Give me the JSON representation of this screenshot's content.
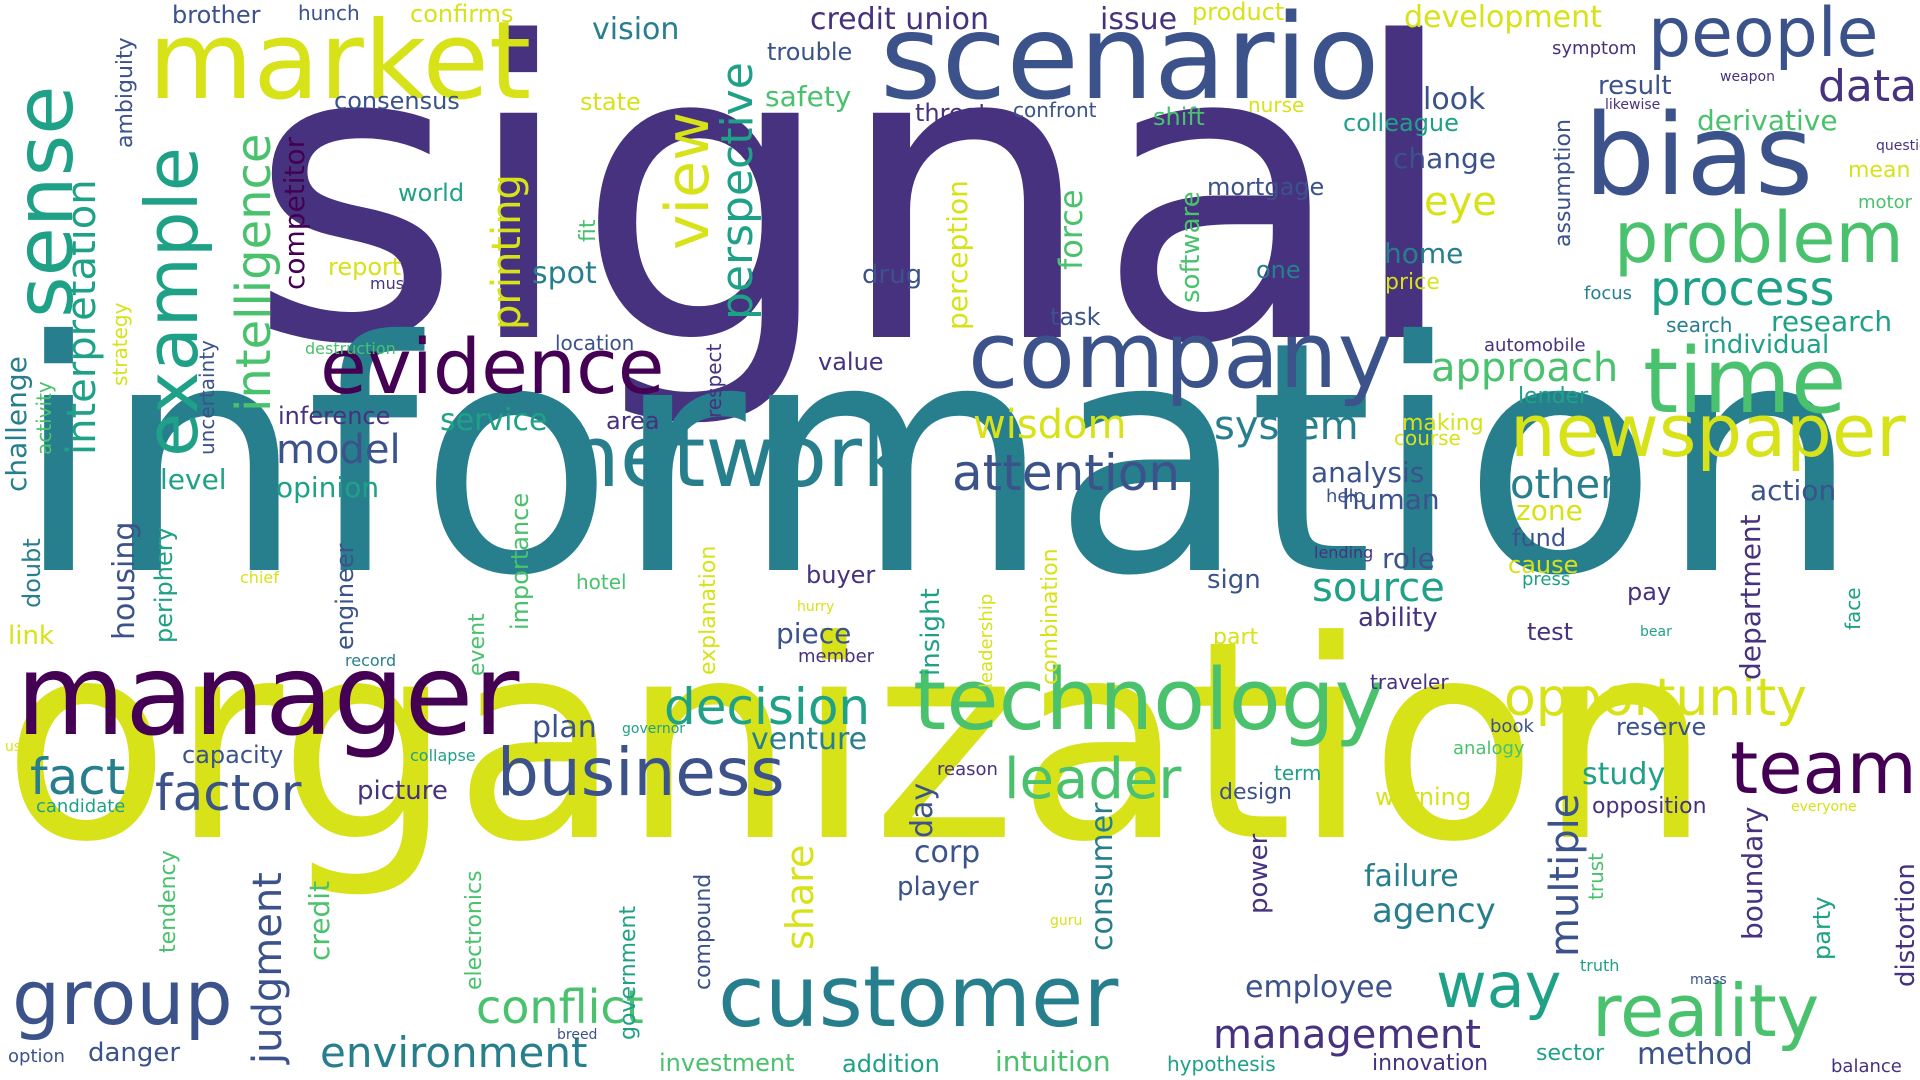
{
  "palette": {
    "background": "#ffffff",
    "p": "#46327e",
    "d": "#3b528b",
    "t": "#277f8e",
    "g": "#1fa187",
    "l": "#4ac16d",
    "y": "#a0da39",
    "b": "#d8e219",
    "n": "#440154"
  },
  "words": [
    {
      "text": "signal",
      "color": "p",
      "vertical": false
    },
    {
      "text": "information",
      "color": "t",
      "vertical": false
    },
    {
      "text": "organization",
      "color": "b",
      "vertical": false
    },
    {
      "text": "scenario",
      "color": "d",
      "vertical": false
    },
    {
      "text": "market",
      "color": "b",
      "vertical": false
    },
    {
      "text": "manager",
      "color": "n",
      "vertical": false
    },
    {
      "text": "company",
      "color": "d",
      "vertical": false
    },
    {
      "text": "bias",
      "color": "d",
      "vertical": false
    },
    {
      "text": "network",
      "color": "t",
      "vertical": false
    },
    {
      "text": "technology",
      "color": "l",
      "vertical": false
    },
    {
      "text": "customer",
      "color": "t",
      "vertical": false
    },
    {
      "text": "evidence",
      "color": "n",
      "vertical": false
    },
    {
      "text": "people",
      "color": "d",
      "vertical": false
    },
    {
      "text": "time",
      "color": "l",
      "vertical": false
    },
    {
      "text": "newspaper",
      "color": "b",
      "vertical": false
    },
    {
      "text": "problem",
      "color": "l",
      "vertical": false
    },
    {
      "text": "business",
      "color": "d",
      "vertical": false
    },
    {
      "text": "team",
      "color": "n",
      "vertical": false
    },
    {
      "text": "reality",
      "color": "l",
      "vertical": false
    },
    {
      "text": "group",
      "color": "d",
      "vertical": false
    },
    {
      "text": "way",
      "color": "g",
      "vertical": false
    },
    {
      "text": "attention",
      "color": "d",
      "vertical": false
    },
    {
      "text": "opportunity",
      "color": "b",
      "vertical": false
    },
    {
      "text": "leader",
      "color": "l",
      "vertical": false
    },
    {
      "text": "process",
      "color": "g",
      "vertical": false
    },
    {
      "text": "decision",
      "color": "g",
      "vertical": false
    },
    {
      "text": "factor",
      "color": "d",
      "vertical": false
    },
    {
      "text": "fact",
      "color": "t",
      "vertical": false
    },
    {
      "text": "conflict",
      "color": "l",
      "vertical": false
    },
    {
      "text": "management",
      "color": "p",
      "vertical": false
    },
    {
      "text": "environment",
      "color": "t",
      "vertical": false
    },
    {
      "text": "approach",
      "color": "l",
      "vertical": false
    },
    {
      "text": "data",
      "color": "p",
      "vertical": false
    },
    {
      "text": "wisdom",
      "color": "b",
      "vertical": false
    },
    {
      "text": "system",
      "color": "t",
      "vertical": false
    },
    {
      "text": "source",
      "color": "g",
      "vertical": false
    },
    {
      "text": "model",
      "color": "d",
      "vertical": false
    },
    {
      "text": "others",
      "color": "t",
      "vertical": false
    },
    {
      "text": "eye",
      "color": "b",
      "vertical": false
    },
    {
      "text": "credit union",
      "color": "p",
      "vertical": false
    },
    {
      "text": "issue",
      "color": "p",
      "vertical": false
    },
    {
      "text": "development",
      "color": "b",
      "vertical": false
    },
    {
      "text": "vision",
      "color": "t",
      "vertical": false
    },
    {
      "text": "employee",
      "color": "d",
      "vertical": false
    },
    {
      "text": "agency",
      "color": "t",
      "vertical": false
    },
    {
      "text": "failure",
      "color": "t",
      "vertical": false
    },
    {
      "text": "venture",
      "color": "t",
      "vertical": false
    },
    {
      "text": "plan",
      "color": "d",
      "vertical": false
    },
    {
      "text": "study",
      "color": "g",
      "vertical": false
    },
    {
      "text": "method",
      "color": "d",
      "vertical": false
    },
    {
      "text": "picture",
      "color": "p",
      "vertical": false
    },
    {
      "text": "spot",
      "color": "t",
      "vertical": false
    },
    {
      "text": "home",
      "color": "t",
      "vertical": false
    },
    {
      "text": "change",
      "color": "d",
      "vertical": false
    },
    {
      "text": "look",
      "color": "d",
      "vertical": false
    },
    {
      "text": "analysis",
      "color": "d",
      "vertical": false
    },
    {
      "text": "human",
      "color": "d",
      "vertical": false
    },
    {
      "text": "role",
      "color": "d",
      "vertical": false
    },
    {
      "text": "ability",
      "color": "p",
      "vertical": false
    },
    {
      "text": "sign",
      "color": "d",
      "vertical": false
    },
    {
      "text": "piece",
      "color": "d",
      "vertical": false
    },
    {
      "text": "buyer",
      "color": "p",
      "vertical": false
    },
    {
      "text": "derivative",
      "color": "l",
      "vertical": false
    },
    {
      "text": "result",
      "color": "d",
      "vertical": false
    },
    {
      "text": "research",
      "color": "g",
      "vertical": false
    },
    {
      "text": "individual",
      "color": "g",
      "vertical": false
    },
    {
      "text": "action",
      "color": "d",
      "vertical": false
    },
    {
      "text": "reserve",
      "color": "d",
      "vertical": false
    },
    {
      "text": "opposition",
      "color": "p",
      "vertical": false
    },
    {
      "text": "innovation",
      "color": "p",
      "vertical": false
    },
    {
      "text": "addition",
      "color": "g",
      "vertical": false
    },
    {
      "text": "intuition",
      "color": "l",
      "vertical": false
    },
    {
      "text": "investment",
      "color": "l",
      "vertical": false
    },
    {
      "text": "danger",
      "color": "d",
      "vertical": false
    },
    {
      "text": "capacity",
      "color": "d",
      "vertical": false
    },
    {
      "text": "service",
      "color": "g",
      "vertical": false
    },
    {
      "text": "inference",
      "color": "p",
      "vertical": false
    },
    {
      "text": "area",
      "color": "p",
      "vertical": false
    },
    {
      "text": "opinion",
      "color": "g",
      "vertical": false
    },
    {
      "text": "level",
      "color": "g",
      "vertical": false
    },
    {
      "text": "consensus",
      "color": "d",
      "vertical": false
    },
    {
      "text": "safety",
      "color": "l",
      "vertical": false
    },
    {
      "text": "trouble",
      "color": "d",
      "vertical": false
    },
    {
      "text": "brother",
      "color": "d",
      "vertical": false
    },
    {
      "text": "hunch",
      "color": "d",
      "vertical": false
    },
    {
      "text": "confirms",
      "color": "b",
      "vertical": false
    },
    {
      "text": "product",
      "color": "b",
      "vertical": false
    },
    {
      "text": "state",
      "color": "b",
      "vertical": false
    },
    {
      "text": "threat",
      "color": "p",
      "vertical": false
    },
    {
      "text": "confront",
      "color": "d",
      "vertical": false
    },
    {
      "text": "shift",
      "color": "l",
      "vertical": false
    },
    {
      "text": "nurse",
      "color": "b",
      "vertical": false
    },
    {
      "text": "colleague",
      "color": "g",
      "vertical": false
    },
    {
      "text": "mortgage",
      "color": "d",
      "vertical": false
    },
    {
      "text": "world",
      "color": "g",
      "vertical": false
    },
    {
      "text": "report",
      "color": "b",
      "vertical": false
    },
    {
      "text": "music",
      "color": "p",
      "vertical": false
    },
    {
      "text": "drug",
      "color": "d",
      "vertical": false
    },
    {
      "text": "one",
      "color": "t",
      "vertical": false
    },
    {
      "text": "price",
      "color": "b",
      "vertical": false
    },
    {
      "text": "task",
      "color": "d",
      "vertical": false
    },
    {
      "text": "location",
      "color": "d",
      "vertical": false
    },
    {
      "text": "destruction",
      "color": "l",
      "vertical": false
    },
    {
      "text": "value",
      "color": "p",
      "vertical": false
    },
    {
      "text": "symptom",
      "color": "p",
      "vertical": false
    },
    {
      "text": "weapon",
      "color": "p",
      "vertical": false
    },
    {
      "text": "likewise",
      "color": "p",
      "vertical": false
    },
    {
      "text": "question",
      "color": "p",
      "vertical": false
    },
    {
      "text": "mean",
      "color": "b",
      "vertical": false
    },
    {
      "text": "motor",
      "color": "l",
      "vertical": false
    },
    {
      "text": "focus",
      "color": "t",
      "vertical": false
    },
    {
      "text": "search",
      "color": "t",
      "vertical": false
    },
    {
      "text": "automobile",
      "color": "p",
      "vertical": false
    },
    {
      "text": "lender",
      "color": "g",
      "vertical": false
    },
    {
      "text": "making",
      "color": "b",
      "vertical": false
    },
    {
      "text": "course",
      "color": "b",
      "vertical": false
    },
    {
      "text": "help",
      "color": "d",
      "vertical": false
    },
    {
      "text": "lending",
      "color": "p",
      "vertical": false
    },
    {
      "text": "zone",
      "color": "b",
      "vertical": false
    },
    {
      "text": "fund",
      "color": "d",
      "vertical": false
    },
    {
      "text": "cause",
      "color": "b",
      "vertical": false
    },
    {
      "text": "press",
      "color": "g",
      "vertical": false
    },
    {
      "text": "pay",
      "color": "p",
      "vertical": false
    },
    {
      "text": "test",
      "color": "p",
      "vertical": false
    },
    {
      "text": "bear",
      "color": "g",
      "vertical": false
    },
    {
      "text": "part",
      "color": "b",
      "vertical": false
    },
    {
      "text": "hotel",
      "color": "l",
      "vertical": false
    },
    {
      "text": "chief",
      "color": "b",
      "vertical": false
    },
    {
      "text": "hurry",
      "color": "b",
      "vertical": false
    },
    {
      "text": "member",
      "color": "p",
      "vertical": false
    },
    {
      "text": "record",
      "color": "t",
      "vertical": false
    },
    {
      "text": "traveler",
      "color": "p",
      "vertical": false
    },
    {
      "text": "book",
      "color": "d",
      "vertical": false
    },
    {
      "text": "governor",
      "color": "g",
      "vertical": false
    },
    {
      "text": "analogy",
      "color": "l",
      "vertical": false
    },
    {
      "text": "collapse",
      "color": "g",
      "vertical": false
    },
    {
      "text": "reason",
      "color": "p",
      "vertical": false
    },
    {
      "text": "term",
      "color": "g",
      "vertical": false
    },
    {
      "text": "warning",
      "color": "b",
      "vertical": false
    },
    {
      "text": "design",
      "color": "d",
      "vertical": false
    },
    {
      "text": "everyone",
      "color": "b",
      "vertical": false
    },
    {
      "text": "candidate",
      "color": "g",
      "vertical": false
    },
    {
      "text": "use",
      "color": "b",
      "vertical": false
    },
    {
      "text": "link",
      "color": "b",
      "vertical": false
    },
    {
      "text": "corp",
      "color": "d",
      "vertical": false
    },
    {
      "text": "player",
      "color": "d",
      "vertical": false
    },
    {
      "text": "option",
      "color": "d",
      "vertical": false
    },
    {
      "text": "breed",
      "color": "d",
      "vertical": false
    },
    {
      "text": "hypothesis",
      "color": "g",
      "vertical": false
    },
    {
      "text": "sector",
      "color": "g",
      "vertical": false
    },
    {
      "text": "balance",
      "color": "p",
      "vertical": false
    },
    {
      "text": "truth",
      "color": "g",
      "vertical": false
    },
    {
      "text": "mass",
      "color": "d",
      "vertical": false
    },
    {
      "text": "guru",
      "color": "b",
      "vertical": false
    },
    {
      "text": "sense",
      "color": "g",
      "vertical": true
    },
    {
      "text": "example",
      "color": "g",
      "vertical": true
    },
    {
      "text": "interpretation",
      "color": "g",
      "vertical": true
    },
    {
      "text": "intelligence",
      "color": "l",
      "vertical": true
    },
    {
      "text": "view",
      "color": "b",
      "vertical": true
    },
    {
      "text": "perspective",
      "color": "g",
      "vertical": true
    },
    {
      "text": "printing",
      "color": "b",
      "vertical": true
    },
    {
      "text": "competitor",
      "color": "n",
      "vertical": true
    },
    {
      "text": "ambiguity",
      "color": "d",
      "vertical": true
    },
    {
      "text": "strategy",
      "color": "b",
      "vertical": true
    },
    {
      "text": "activity",
      "color": "l",
      "vertical": true
    },
    {
      "text": "challenge",
      "color": "t",
      "vertical": true
    },
    {
      "text": "uncertainty",
      "color": "d",
      "vertical": true
    },
    {
      "text": "respect",
      "color": "p",
      "vertical": true
    },
    {
      "text": "perception",
      "color": "b",
      "vertical": true
    },
    {
      "text": "force",
      "color": "l",
      "vertical": true
    },
    {
      "text": "software",
      "color": "l",
      "vertical": true
    },
    {
      "text": "fit",
      "color": "l",
      "vertical": true
    },
    {
      "text": "assumption",
      "color": "d",
      "vertical": true
    },
    {
      "text": "doubt",
      "color": "t",
      "vertical": true
    },
    {
      "text": "housing",
      "color": "d",
      "vertical": true
    },
    {
      "text": "periphery",
      "color": "g",
      "vertical": true
    },
    {
      "text": "engineer",
      "color": "d",
      "vertical": true
    },
    {
      "text": "importance",
      "color": "l",
      "vertical": true
    },
    {
      "text": "event",
      "color": "l",
      "vertical": true
    },
    {
      "text": "explanation",
      "color": "b",
      "vertical": true
    },
    {
      "text": "insight",
      "color": "g",
      "vertical": true
    },
    {
      "text": "leadership",
      "color": "b",
      "vertical": true
    },
    {
      "text": "combination",
      "color": "b",
      "vertical": true
    },
    {
      "text": "department",
      "color": "p",
      "vertical": true
    },
    {
      "text": "face",
      "color": "g",
      "vertical": true
    },
    {
      "text": "multiple",
      "color": "d",
      "vertical": true
    },
    {
      "text": "share",
      "color": "b",
      "vertical": true
    },
    {
      "text": "day",
      "color": "d",
      "vertical": true
    },
    {
      "text": "consumer",
      "color": "t",
      "vertical": true
    },
    {
      "text": "power",
      "color": "p",
      "vertical": true
    },
    {
      "text": "judgment",
      "color": "d",
      "vertical": true
    },
    {
      "text": "tendency",
      "color": "l",
      "vertical": true
    },
    {
      "text": "credit",
      "color": "l",
      "vertical": true
    },
    {
      "text": "electronics",
      "color": "l",
      "vertical": true
    },
    {
      "text": "government",
      "color": "g",
      "vertical": true
    },
    {
      "text": "compound",
      "color": "d",
      "vertical": true
    },
    {
      "text": "trust",
      "color": "l",
      "vertical": true
    },
    {
      "text": "boundary",
      "color": "p",
      "vertical": true
    },
    {
      "text": "party",
      "color": "g",
      "vertical": true
    },
    {
      "text": "distortion",
      "color": "p",
      "vertical": true
    }
  ]
}
